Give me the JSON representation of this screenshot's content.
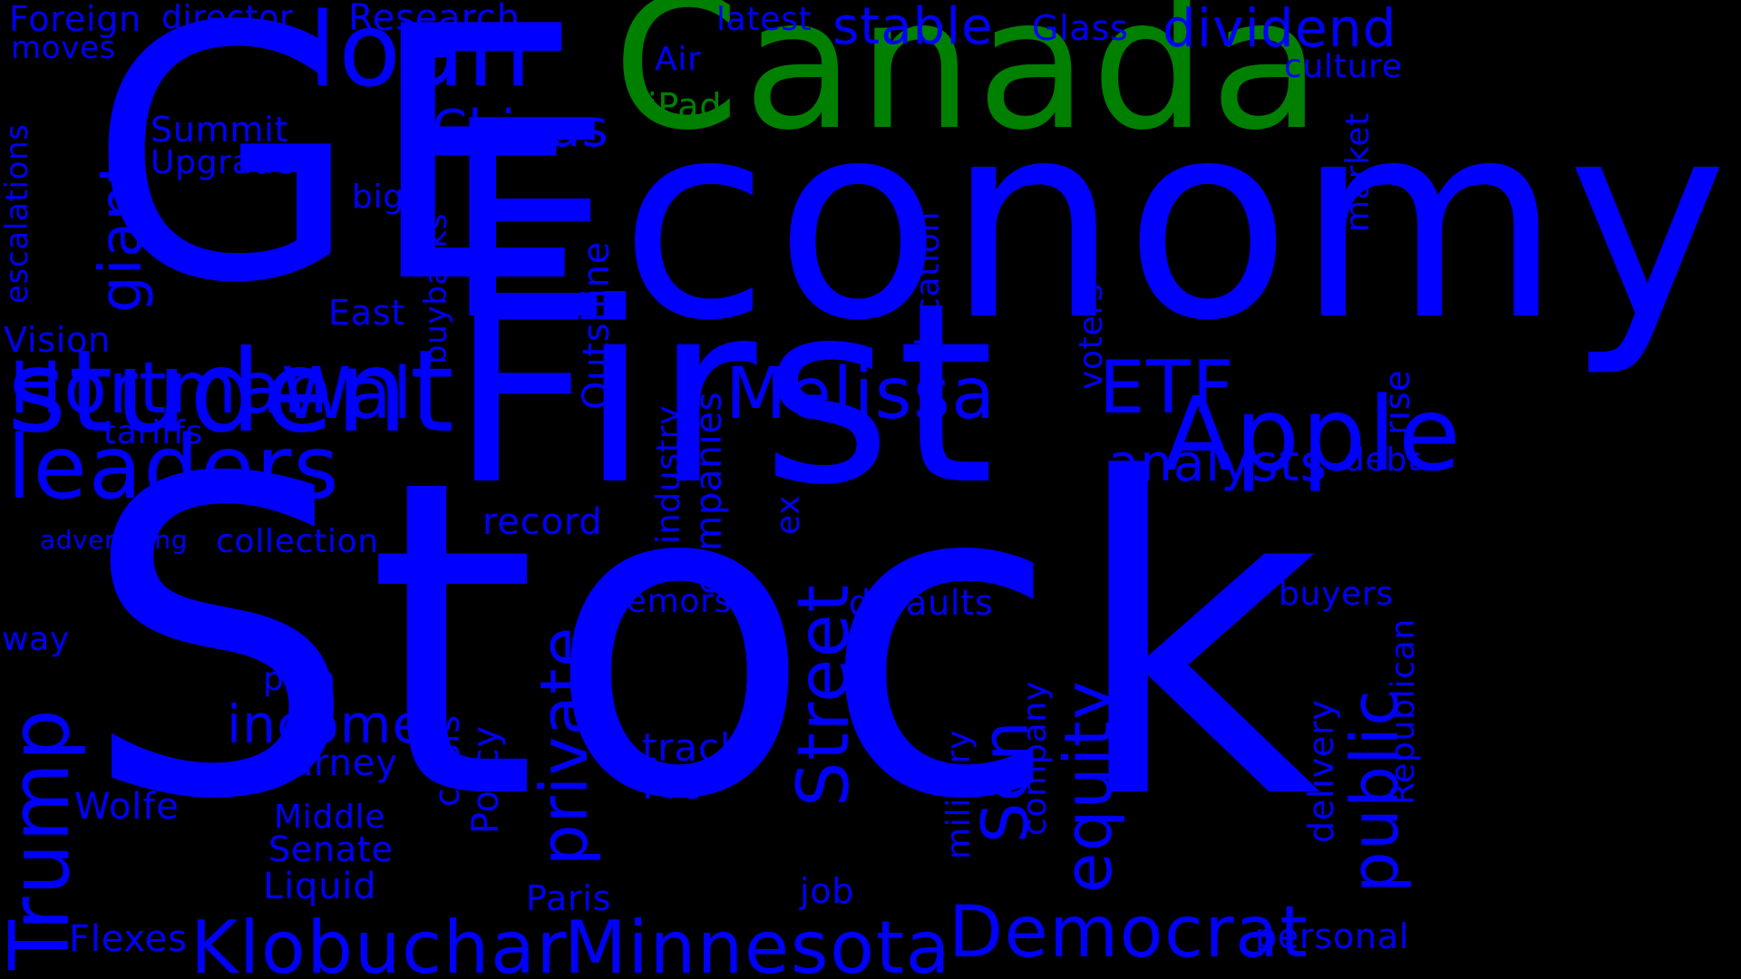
{
  "colors": {
    "background": "#000000",
    "primary_word": "#0000ff",
    "accent_word": "#008000"
  },
  "words": [
    {
      "text": "Stock",
      "color": "#0000ff",
      "orientation": "horizontal"
    },
    {
      "text": "Economy",
      "color": "#0000ff",
      "orientation": "horizontal"
    },
    {
      "text": "First",
      "color": "#0000ff",
      "orientation": "horizontal"
    },
    {
      "text": "GE",
      "color": "#0000ff",
      "orientation": "horizontal"
    },
    {
      "text": "Canada",
      "color": "#008000",
      "orientation": "horizontal"
    },
    {
      "text": "student",
      "color": "#0000ff",
      "orientation": "horizontal"
    },
    {
      "text": "loan",
      "color": "#0000ff",
      "orientation": "horizontal"
    },
    {
      "text": "leaders",
      "color": "#0000ff",
      "orientation": "horizontal"
    },
    {
      "text": "Apple",
      "color": "#0000ff",
      "orientation": "horizontal"
    },
    {
      "text": "Democrat",
      "color": "#0000ff",
      "orientation": "horizontal"
    },
    {
      "text": "Minnesota",
      "color": "#0000ff",
      "orientation": "horizontal"
    },
    {
      "text": "Klobuchar",
      "color": "#0000ff",
      "orientation": "horizontal"
    },
    {
      "text": "Hortman",
      "color": "#0000ff",
      "orientation": "horizontal"
    },
    {
      "text": "Wall",
      "color": "#0000ff",
      "orientation": "horizontal"
    },
    {
      "text": "Melissa",
      "color": "#0000ff",
      "orientation": "horizontal"
    },
    {
      "text": "ETF",
      "color": "#0000ff",
      "orientation": "horizontal"
    },
    {
      "text": "dividend",
      "color": "#0000ff",
      "orientation": "horizontal"
    },
    {
      "text": "stable",
      "color": "#0000ff",
      "orientation": "horizontal"
    },
    {
      "text": "Chinas",
      "color": "#0000ff",
      "orientation": "horizontal"
    },
    {
      "text": "analysts",
      "color": "#0000ff",
      "orientation": "horizontal"
    },
    {
      "text": "income",
      "color": "#0000ff",
      "orientation": "horizontal"
    },
    {
      "text": "Research",
      "color": "#0000ff",
      "orientation": "horizontal"
    },
    {
      "text": "Foreign",
      "color": "#0000ff",
      "orientation": "horizontal"
    },
    {
      "text": "director",
      "color": "#0000ff",
      "orientation": "horizontal"
    },
    {
      "text": "moves",
      "color": "#0000ff",
      "orientation": "horizontal"
    },
    {
      "text": "Glass",
      "color": "#0000ff",
      "orientation": "horizontal"
    },
    {
      "text": "latest",
      "color": "#0000ff",
      "orientation": "horizontal"
    },
    {
      "text": "Air",
      "color": "#0000ff",
      "orientation": "horizontal"
    },
    {
      "text": "iPad",
      "color": "#008000",
      "orientation": "horizontal"
    },
    {
      "text": "culture",
      "color": "#0000ff",
      "orientation": "horizontal"
    },
    {
      "text": "Summit",
      "color": "#0000ff",
      "orientation": "horizontal"
    },
    {
      "text": "Upgrades",
      "color": "#0000ff",
      "orientation": "horizontal"
    },
    {
      "text": "big",
      "color": "#0000ff",
      "orientation": "horizontal"
    },
    {
      "text": "East",
      "color": "#0000ff",
      "orientation": "horizontal"
    },
    {
      "text": "Vision",
      "color": "#0000ff",
      "orientation": "horizontal"
    },
    {
      "text": "tariffs",
      "color": "#0000ff",
      "orientation": "horizontal"
    },
    {
      "text": "advertising",
      "color": "#0000ff",
      "orientation": "horizontal"
    },
    {
      "text": "collection",
      "color": "#0000ff",
      "orientation": "horizontal"
    },
    {
      "text": "record",
      "color": "#0000ff",
      "orientation": "horizontal"
    },
    {
      "text": "remorse",
      "color": "#0000ff",
      "orientation": "horizontal"
    },
    {
      "text": "defaults",
      "color": "#0000ff",
      "orientation": "horizontal"
    },
    {
      "text": "debt",
      "color": "#0000ff",
      "orientation": "horizontal"
    },
    {
      "text": "buyers",
      "color": "#0000ff",
      "orientation": "horizontal"
    },
    {
      "text": "way",
      "color": "#0000ff",
      "orientation": "horizontal"
    },
    {
      "text": "plan",
      "color": "#0000ff",
      "orientation": "horizontal"
    },
    {
      "text": "Carney",
      "color": "#0000ff",
      "orientation": "horizontal"
    },
    {
      "text": "track",
      "color": "#0000ff",
      "orientation": "horizontal"
    },
    {
      "text": "Pro",
      "color": "#0000ff",
      "orientation": "horizontal"
    },
    {
      "text": "Wolfe",
      "color": "#0000ff",
      "orientation": "horizontal"
    },
    {
      "text": "Middle",
      "color": "#0000ff",
      "orientation": "horizontal"
    },
    {
      "text": "Senate",
      "color": "#0000ff",
      "orientation": "horizontal"
    },
    {
      "text": "Liquid",
      "color": "#0000ff",
      "orientation": "horizontal"
    },
    {
      "text": "Paris",
      "color": "#0000ff",
      "orientation": "horizontal"
    },
    {
      "text": "job",
      "color": "#0000ff",
      "orientation": "horizontal"
    },
    {
      "text": "Flexes",
      "color": "#0000ff",
      "orientation": "horizontal"
    },
    {
      "text": "personal",
      "color": "#0000ff",
      "orientation": "horizontal"
    },
    {
      "text": "giant",
      "color": "#0000ff",
      "orientation": "vertical"
    },
    {
      "text": "escalations",
      "color": "#0000ff",
      "orientation": "vertical"
    },
    {
      "text": "buybacks",
      "color": "#0000ff",
      "orientation": "vertical"
    },
    {
      "text": "Outshine",
      "color": "#0000ff",
      "orientation": "vertical"
    },
    {
      "text": "education",
      "color": "#0000ff",
      "orientation": "vertical"
    },
    {
      "text": "voters",
      "color": "#0000ff",
      "orientation": "vertical"
    },
    {
      "text": "market",
      "color": "#0000ff",
      "orientation": "vertical"
    },
    {
      "text": "rise",
      "color": "#0000ff",
      "orientation": "vertical"
    },
    {
      "text": "industry",
      "color": "#0000ff",
      "orientation": "vertical"
    },
    {
      "text": "companies",
      "color": "#0000ff",
      "orientation": "vertical"
    },
    {
      "text": "ex",
      "color": "#0000ff",
      "orientation": "vertical"
    },
    {
      "text": "private",
      "color": "#0000ff",
      "orientation": "vertical"
    },
    {
      "text": "Street",
      "color": "#0000ff",
      "orientation": "vertical"
    },
    {
      "text": "equity",
      "color": "#0000ff",
      "orientation": "vertical"
    },
    {
      "text": "Sen",
      "color": "#0000ff",
      "orientation": "vertical"
    },
    {
      "text": "public",
      "color": "#0000ff",
      "orientation": "vertical"
    },
    {
      "text": "Republican",
      "color": "#0000ff",
      "orientation": "vertical"
    },
    {
      "text": "delivery",
      "color": "#0000ff",
      "orientation": "vertical"
    },
    {
      "text": "company",
      "color": "#0000ff",
      "orientation": "vertical"
    },
    {
      "text": "military",
      "color": "#0000ff",
      "orientation": "vertical"
    },
    {
      "text": "Policy",
      "color": "#0000ff",
      "orientation": "vertical"
    },
    {
      "text": "crisis",
      "color": "#0000ff",
      "orientation": "vertical"
    },
    {
      "text": "Trump",
      "color": "#0000ff",
      "orientation": "vertical"
    }
  ]
}
